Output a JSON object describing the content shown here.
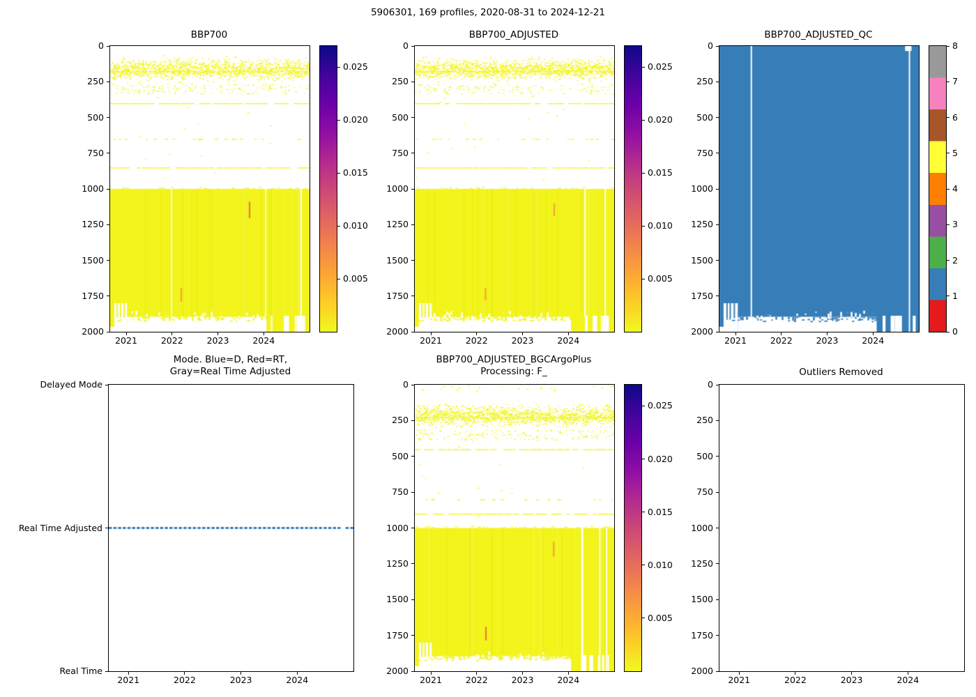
{
  "suptitle": "5906301, 169 profiles, 2020-08-31 to 2024-12-21",
  "colors": {
    "background": "#ffffff",
    "axis": "#000000",
    "point_yellow": "#f2f41c",
    "qc_blue": "#377eb8",
    "mode_line_blue": "#3880bd",
    "plasma_stops": [
      "#0d0887",
      "#41049d",
      "#6a00a8",
      "#8f0da4",
      "#b12a90",
      "#cc4778",
      "#e16462",
      "#f2844b",
      "#fca636",
      "#fcce25",
      "#f0f921"
    ],
    "qc_palette": [
      "#e41a1c",
      "#377eb8",
      "#4daf4a",
      "#984ea3",
      "#ff7f00",
      "#ffff33",
      "#a65628",
      "#f781bf",
      "#999999"
    ]
  },
  "x_axis": {
    "range": [
      2020.65,
      2025.0
    ],
    "ticks": [
      2021,
      2022,
      2023,
      2024
    ],
    "tick_labels": [
      "2021",
      "2022",
      "2023",
      "2024"
    ]
  },
  "depth_axis": {
    "range": [
      0,
      2000
    ],
    "ticks": [
      0,
      250,
      500,
      750,
      1000,
      1250,
      1500,
      1750,
      2000
    ],
    "tick_labels": [
      "0",
      "250",
      "500",
      "750",
      "1000",
      "1250",
      "1500",
      "1750",
      "2000"
    ]
  },
  "mode_axis": {
    "levels": [
      0,
      1,
      2
    ],
    "tick_labels": [
      "Real Time",
      "Real Time Adjusted",
      "Delayed Mode"
    ]
  },
  "plasma_colorbar": {
    "range": [
      0,
      0.027
    ],
    "ticks": [
      0.005,
      0.01,
      0.015,
      0.02,
      0.025
    ],
    "labels": [
      "0.005",
      "0.010",
      "0.015",
      "0.020",
      "0.025"
    ]
  },
  "qc_colorbar": {
    "range": [
      0,
      8
    ],
    "ticks": [
      0,
      1,
      2,
      3,
      4,
      5,
      6,
      7,
      8
    ],
    "labels": [
      "0",
      "1",
      "2",
      "3",
      "4",
      "5",
      "6",
      "7",
      "8"
    ]
  },
  "chart_data": [
    {
      "id": "bbp700",
      "type": "heatmap",
      "title": "BBP700",
      "x_range": [
        2020.65,
        2025.0
      ],
      "x_ticks": [
        2021,
        2022,
        2023,
        2024
      ],
      "y_axis": "depth",
      "y_range": [
        0,
        2000
      ],
      "colormap": "plasma_r",
      "value_range": [
        0,
        0.027
      ],
      "features": {
        "seed": 7,
        "n_profiles": 169,
        "band": {
          "top": 60,
          "bottom": 265,
          "line": 175,
          "line2": 187,
          "tail_to": 335
        },
        "dashed_lines": [
          400,
          850
        ],
        "sparse_line": 650,
        "block_top": 1000,
        "bottom_profile": [
          {
            "x0": 2020.65,
            "x1": 2020.74,
            "bottom": 1965
          },
          {
            "x0": 2020.74,
            "x1": 2021.02,
            "bottom": 1800,
            "teeth_to": 1900,
            "teeth": [
              2020.79,
              2020.86,
              2020.94
            ],
            "dashes_below": 1912
          },
          {
            "x0": 2021.02,
            "x1": 2024.06,
            "bottom": 1895,
            "ragged": 12,
            "dashes_below": 1912
          },
          {
            "x0": 2024.06,
            "x1": 2025.0,
            "bottom": 2000,
            "white_stripes": 8
          }
        ],
        "white_gaps": [
          {
            "x": 2021.98,
            "w": 1.5,
            "d1": 1895
          },
          {
            "x": 2024.03,
            "w": 1.5,
            "d1": 1895
          },
          {
            "x": 2024.8,
            "w": 2,
            "d1": 2000
          }
        ],
        "marks": [
          {
            "x": 2023.69,
            "d0": 1090,
            "d1": 1205,
            "color": "#ed7a34"
          },
          {
            "x": 2022.2,
            "d0": 1695,
            "d1": 1790,
            "color": "#f2a43c"
          }
        ]
      }
    },
    {
      "id": "bbp700_adjusted",
      "type": "heatmap",
      "title": "BBP700_ADJUSTED",
      "x_range": [
        2020.65,
        2025.0
      ],
      "x_ticks": [
        2021,
        2022,
        2023,
        2024
      ],
      "y_axis": "depth",
      "y_range": [
        0,
        2000
      ],
      "colormap": "plasma_r",
      "value_range": [
        0,
        0.027
      ],
      "features": {
        "seed": 11,
        "n_profiles": 169,
        "band": {
          "top": 60,
          "bottom": 265,
          "line": 175,
          "line2": 187,
          "tail_to": 335
        },
        "dashed_lines": [
          400,
          850
        ],
        "sparse_line": 650,
        "block_top": 1000,
        "bottom_profile": [
          {
            "x0": 2020.65,
            "x1": 2020.74,
            "bottom": 1965
          },
          {
            "x0": 2020.74,
            "x1": 2021.02,
            "bottom": 1800,
            "teeth_to": 1900,
            "teeth": [
              2020.79,
              2020.86,
              2020.94
            ],
            "dashes_below": 1912
          },
          {
            "x0": 2021.02,
            "x1": 2024.06,
            "bottom": 1895,
            "ragged": 12,
            "dashes_below": 1912
          },
          {
            "x0": 2024.06,
            "x1": 2025.0,
            "bottom": 2000,
            "white_stripes": 8
          }
        ],
        "white_gaps": [
          {
            "x": 2024.35,
            "w": 2,
            "d1": 1895
          },
          {
            "x": 2024.79,
            "w": 2,
            "d1": 2000
          }
        ],
        "marks": [
          {
            "x": 2023.69,
            "d0": 1100,
            "d1": 1190,
            "color": "#f2a43c"
          },
          {
            "x": 2022.19,
            "d0": 1695,
            "d1": 1780,
            "color": "#f2a43c"
          }
        ]
      }
    },
    {
      "id": "bbp700_adjusted_qc",
      "type": "qc-heatmap",
      "title": "BBP700_ADJUSTED_QC",
      "x_range": [
        2020.65,
        2025.0
      ],
      "x_ticks": [
        2021,
        2022,
        2023,
        2024
      ],
      "y_axis": "depth",
      "y_range": [
        0,
        2000
      ],
      "colormap": "Set1",
      "value_range": [
        0,
        8
      ],
      "dominant_qc_value": 1,
      "features": {
        "seed": 13,
        "n_profiles": 169,
        "block_top": 0,
        "bottom_profile": [
          {
            "x0": 2020.65,
            "x1": 2020.74,
            "bottom": 1965
          },
          {
            "x0": 2020.74,
            "x1": 2021.05,
            "bottom": 1800,
            "teeth_to": 1905,
            "teeth": [
              2020.8,
              2020.87,
              2020.96
            ],
            "dashes_below": 1915
          },
          {
            "x0": 2021.05,
            "x1": 2024.08,
            "bottom": 1895,
            "ragged": 12,
            "dashes_below": 1915
          },
          {
            "x0": 2024.08,
            "x1": 2025.0,
            "bottom": 2000,
            "white_stripes": 8
          }
        ],
        "white_gaps": [
          {
            "x": 2021.33,
            "w": 2,
            "d1": 1895
          },
          {
            "x": 2024.78,
            "w": 2,
            "d1": 2000
          }
        ],
        "top_notch": {
          "x0": 2024.7,
          "x1": 2024.84,
          "depth": 35
        },
        "marks": []
      }
    },
    {
      "id": "mode",
      "type": "mode-line",
      "title": "Mode. Blue=D, Red=RT,\nGray=Real Time Adjusted",
      "x_range": [
        2020.65,
        2025.0
      ],
      "x_ticks": [
        2021,
        2022,
        2023,
        2024
      ],
      "y_axis": "mode",
      "y_range": [
        0,
        2
      ],
      "features": {
        "seed": 17,
        "line_level": 1,
        "line_level_label": "Real Time Adjusted",
        "gap": [
          2024.77,
          2024.86
        ],
        "dash": [
          4.5,
          2.2
        ],
        "line_width": 3
      }
    },
    {
      "id": "bbp700_adjusted_bgcargoplus",
      "type": "heatmap",
      "title": "BBP700_ADJUSTED_BGCArgoPlus\nProcessing: F_",
      "x_range": [
        2020.65,
        2025.0
      ],
      "x_ticks": [
        2021,
        2022,
        2023,
        2024
      ],
      "y_axis": "depth",
      "y_range": [
        0,
        2000
      ],
      "colormap": "plasma_r",
      "value_range": [
        0,
        0.027
      ],
      "features": {
        "seed": 19,
        "n_profiles": 169,
        "top_dashes": true,
        "band": {
          "top": 118,
          "bottom": 312,
          "line": 226,
          "line2": 238,
          "tail_to": 385
        },
        "dashed_lines": [
          450,
          900
        ],
        "sparse_line": 800,
        "block_top": 1000,
        "bottom_profile": [
          {
            "x0": 2020.65,
            "x1": 2020.74,
            "bottom": 1965
          },
          {
            "x0": 2020.74,
            "x1": 2021.02,
            "bottom": 1800,
            "teeth_to": 1900,
            "teeth": [
              2020.79,
              2020.86,
              2020.94
            ],
            "dashes_below": 1912
          },
          {
            "x0": 2021.02,
            "x1": 2024.06,
            "bottom": 1895,
            "ragged": 12,
            "dashes_below": 1912
          },
          {
            "x0": 2024.06,
            "x1": 2025.0,
            "bottom": 2000,
            "white_stripes": 7
          }
        ],
        "white_gaps": [
          {
            "x": 2024.28,
            "w": 3,
            "d1": 2000
          },
          {
            "x": 2024.67,
            "w": 2,
            "d1": 2000
          },
          {
            "x": 2024.82,
            "w": 2,
            "d1": 2000
          }
        ],
        "marks": [
          {
            "x": 2023.68,
            "d0": 1095,
            "d1": 1200,
            "color": "#f2a43c"
          },
          {
            "x": 2022.2,
            "d0": 1690,
            "d1": 1785,
            "color": "#ed7a34"
          }
        ]
      }
    },
    {
      "id": "outliers_removed",
      "type": "empty",
      "title": "Outliers Removed",
      "x_range": [
        2020.65,
        2025.0
      ],
      "x_ticks": [
        2021,
        2022,
        2023,
        2024
      ],
      "y_axis": "depth",
      "y_range": [
        0,
        2000
      ],
      "features": {
        "seed": 23
      }
    }
  ]
}
